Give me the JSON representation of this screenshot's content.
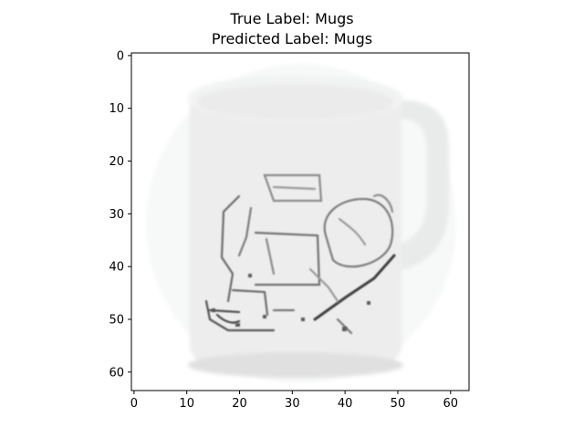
{
  "title": {
    "line1": "True Label: Mugs",
    "line2": "Predicted Label: Mugs"
  },
  "image": {
    "subject": "white mug with a sketched drawing",
    "pixel_grid": 64
  },
  "axes": {
    "x_ticks": [
      "0",
      "10",
      "20",
      "30",
      "40",
      "50",
      "60"
    ],
    "y_ticks": [
      "0",
      "10",
      "20",
      "30",
      "40",
      "50",
      "60"
    ],
    "x_range": [
      -0.5,
      63.5
    ],
    "y_range": [
      -0.5,
      63.5
    ]
  },
  "colors": {
    "mug": "#ececec",
    "sketch": "#5a5a5a",
    "background": "#ffffff"
  }
}
